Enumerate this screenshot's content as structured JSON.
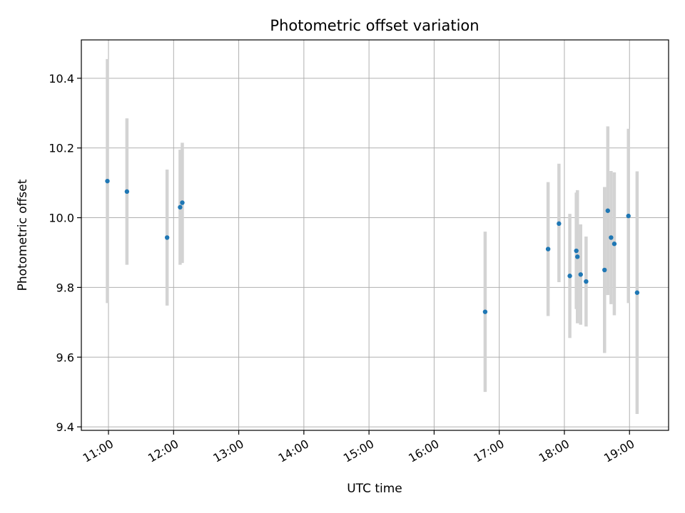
{
  "chart_data": {
    "type": "scatter",
    "title": "Photometric offset variation",
    "xlabel": "UTC time",
    "ylabel": "Photometric offset",
    "grid": true,
    "x_ticks": [
      "11:00",
      "12:00",
      "13:00",
      "14:00",
      "15:00",
      "16:00",
      "17:00",
      "18:00",
      "19:00"
    ],
    "y_ticks": [
      "9.4",
      "9.6",
      "9.8",
      "10.0",
      "10.2",
      "10.4"
    ],
    "xlim": [
      "10:35",
      "19:36"
    ],
    "ylim": [
      9.39,
      10.51
    ],
    "point_color": "#1f77b4",
    "errorbar_color": "#d3d3d3",
    "points": [
      {
        "x": "10:59",
        "y": 10.105,
        "yerr_low": 9.755,
        "yerr_high": 10.455
      },
      {
        "x": "11:17",
        "y": 10.075,
        "yerr_low": 9.865,
        "yerr_high": 10.285
      },
      {
        "x": "11:54",
        "y": 9.943,
        "yerr_low": 9.748,
        "yerr_high": 10.138
      },
      {
        "x": "12:06",
        "y": 10.03,
        "yerr_low": 9.865,
        "yerr_high": 10.195
      },
      {
        "x": "12:08",
        "y": 10.043,
        "yerr_low": 9.87,
        "yerr_high": 10.215
      },
      {
        "x": "16:47",
        "y": 9.73,
        "yerr_low": 9.5,
        "yerr_high": 9.96
      },
      {
        "x": "17:45",
        "y": 9.91,
        "yerr_low": 9.718,
        "yerr_high": 10.102
      },
      {
        "x": "17:55",
        "y": 9.983,
        "yerr_low": 9.815,
        "yerr_high": 10.155
      },
      {
        "x": "18:05",
        "y": 9.833,
        "yerr_low": 9.655,
        "yerr_high": 10.011
      },
      {
        "x": "18:11",
        "y": 9.905,
        "yerr_low": 9.738,
        "yerr_high": 10.072
      },
      {
        "x": "18:12",
        "y": 9.888,
        "yerr_low": 9.697,
        "yerr_high": 10.079
      },
      {
        "x": "18:15",
        "y": 9.837,
        "yerr_low": 9.693,
        "yerr_high": 9.981
      },
      {
        "x": "18:20",
        "y": 9.817,
        "yerr_low": 9.688,
        "yerr_high": 9.946
      },
      {
        "x": "18:37",
        "y": 9.85,
        "yerr_low": 9.612,
        "yerr_high": 10.088
      },
      {
        "x": "18:40",
        "y": 10.02,
        "yerr_low": 9.778,
        "yerr_high": 10.262
      },
      {
        "x": "18:43",
        "y": 9.943,
        "yerr_low": 9.752,
        "yerr_high": 10.134
      },
      {
        "x": "18:46",
        "y": 9.925,
        "yerr_low": 9.72,
        "yerr_high": 10.13
      },
      {
        "x": "18:59",
        "y": 10.005,
        "yerr_low": 9.755,
        "yerr_high": 10.255
      },
      {
        "x": "19:07",
        "y": 9.785,
        "yerr_low": 9.437,
        "yerr_high": 10.133
      }
    ]
  }
}
